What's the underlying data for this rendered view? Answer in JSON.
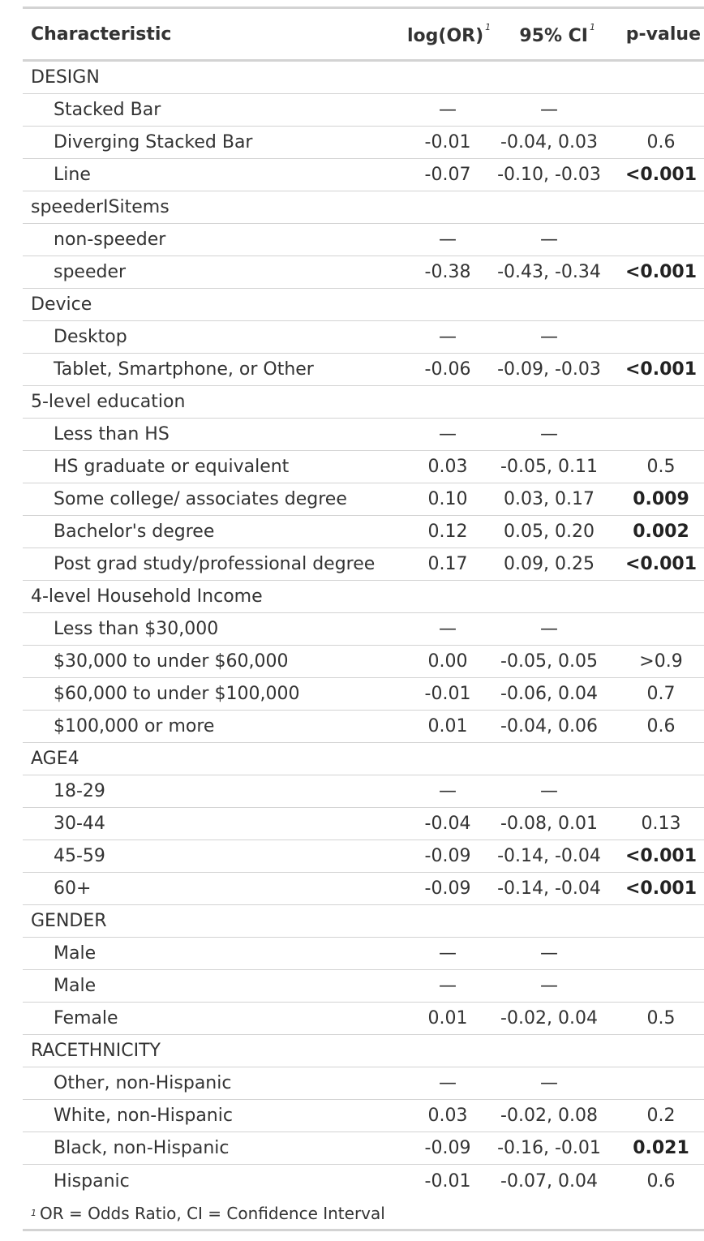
{
  "header": {
    "characteristic": "Characteristic",
    "log_or": "log(OR)",
    "ci": "95% CI",
    "p_value": "p-value",
    "footnote_marker": "1"
  },
  "rows": [
    {
      "type": "group",
      "label": "DESIGN",
      "or": "",
      "ci": "",
      "p": "",
      "bold": false
    },
    {
      "type": "level",
      "label": "Stacked Bar",
      "or": "—",
      "ci": "—",
      "p": "",
      "bold": false
    },
    {
      "type": "level",
      "label": "Diverging Stacked Bar",
      "or": "-0.01",
      "ci": "-0.04, 0.03",
      "p": "0.6",
      "bold": false
    },
    {
      "type": "level",
      "label": "Line",
      "or": "-0.07",
      "ci": "-0.10, -0.03",
      "p": "<0.001",
      "bold": true
    },
    {
      "type": "group",
      "label": "speederISitems",
      "or": "",
      "ci": "",
      "p": "",
      "bold": false
    },
    {
      "type": "level",
      "label": "non-speeder",
      "or": "—",
      "ci": "—",
      "p": "",
      "bold": false
    },
    {
      "type": "level",
      "label": "speeder",
      "or": "-0.38",
      "ci": "-0.43, -0.34",
      "p": "<0.001",
      "bold": true
    },
    {
      "type": "group",
      "label": "Device",
      "or": "",
      "ci": "",
      "p": "",
      "bold": false
    },
    {
      "type": "level",
      "label": "Desktop",
      "or": "—",
      "ci": "—",
      "p": "",
      "bold": false
    },
    {
      "type": "level",
      "label": "Tablet, Smartphone, or Other",
      "or": "-0.06",
      "ci": "-0.09, -0.03",
      "p": "<0.001",
      "bold": true
    },
    {
      "type": "group",
      "label": "5-level education",
      "or": "",
      "ci": "",
      "p": "",
      "bold": false
    },
    {
      "type": "level",
      "label": "Less than HS",
      "or": "—",
      "ci": "—",
      "p": "",
      "bold": false
    },
    {
      "type": "level",
      "label": "HS graduate or equivalent",
      "or": "0.03",
      "ci": "-0.05, 0.11",
      "p": "0.5",
      "bold": false
    },
    {
      "type": "level",
      "label": "Some college/ associates degree",
      "or": "0.10",
      "ci": "0.03, 0.17",
      "p": "0.009",
      "bold": true
    },
    {
      "type": "level",
      "label": "Bachelor's degree",
      "or": "0.12",
      "ci": "0.05, 0.20",
      "p": "0.002",
      "bold": true
    },
    {
      "type": "level",
      "label": "Post grad study/professional degree",
      "or": "0.17",
      "ci": "0.09, 0.25",
      "p": "<0.001",
      "bold": true
    },
    {
      "type": "group",
      "label": "4-level Household Income",
      "or": "",
      "ci": "",
      "p": "",
      "bold": false
    },
    {
      "type": "level",
      "label": "Less than $30,000",
      "or": "—",
      "ci": "—",
      "p": "",
      "bold": false
    },
    {
      "type": "level",
      "label": "$30,000 to under $60,000",
      "or": "0.00",
      "ci": "-0.05, 0.05",
      "p": ">0.9",
      "bold": false
    },
    {
      "type": "level",
      "label": "$60,000 to under $100,000",
      "or": "-0.01",
      "ci": "-0.06, 0.04",
      "p": "0.7",
      "bold": false
    },
    {
      "type": "level",
      "label": "$100,000 or more",
      "or": "0.01",
      "ci": "-0.04, 0.06",
      "p": "0.6",
      "bold": false
    },
    {
      "type": "group",
      "label": "AGE4",
      "or": "",
      "ci": "",
      "p": "",
      "bold": false
    },
    {
      "type": "level",
      "label": "18-29",
      "or": "—",
      "ci": "—",
      "p": "",
      "bold": false
    },
    {
      "type": "level",
      "label": "30-44",
      "or": "-0.04",
      "ci": "-0.08, 0.01",
      "p": "0.13",
      "bold": false
    },
    {
      "type": "level",
      "label": "45-59",
      "or": "-0.09",
      "ci": "-0.14, -0.04",
      "p": "<0.001",
      "bold": true
    },
    {
      "type": "level",
      "label": "60+",
      "or": "-0.09",
      "ci": "-0.14, -0.04",
      "p": "<0.001",
      "bold": true
    },
    {
      "type": "group",
      "label": "GENDER",
      "or": "",
      "ci": "",
      "p": "",
      "bold": false
    },
    {
      "type": "level",
      "label": "Male",
      "or": "—",
      "ci": "—",
      "p": "",
      "bold": false
    },
    {
      "type": "level",
      "label": "Male",
      "or": "—",
      "ci": "—",
      "p": "",
      "bold": false
    },
    {
      "type": "level",
      "label": "Female",
      "or": "0.01",
      "ci": "-0.02, 0.04",
      "p": "0.5",
      "bold": false
    },
    {
      "type": "group",
      "label": "RACETHNICITY",
      "or": "",
      "ci": "",
      "p": "",
      "bold": false
    },
    {
      "type": "level",
      "label": "Other, non-Hispanic",
      "or": "—",
      "ci": "—",
      "p": "",
      "bold": false
    },
    {
      "type": "level",
      "label": "White, non-Hispanic",
      "or": "0.03",
      "ci": "-0.02, 0.08",
      "p": "0.2",
      "bold": false
    },
    {
      "type": "level",
      "label": "Black, non-Hispanic",
      "or": "-0.09",
      "ci": "-0.16, -0.01",
      "p": "0.021",
      "bold": true
    },
    {
      "type": "level",
      "label": "Hispanic",
      "or": "-0.01",
      "ci": "-0.07, 0.04",
      "p": "0.6",
      "bold": false
    }
  ],
  "footnote": {
    "marker": "1",
    "text": "OR = Odds Ratio, CI = Confidence Interval"
  }
}
